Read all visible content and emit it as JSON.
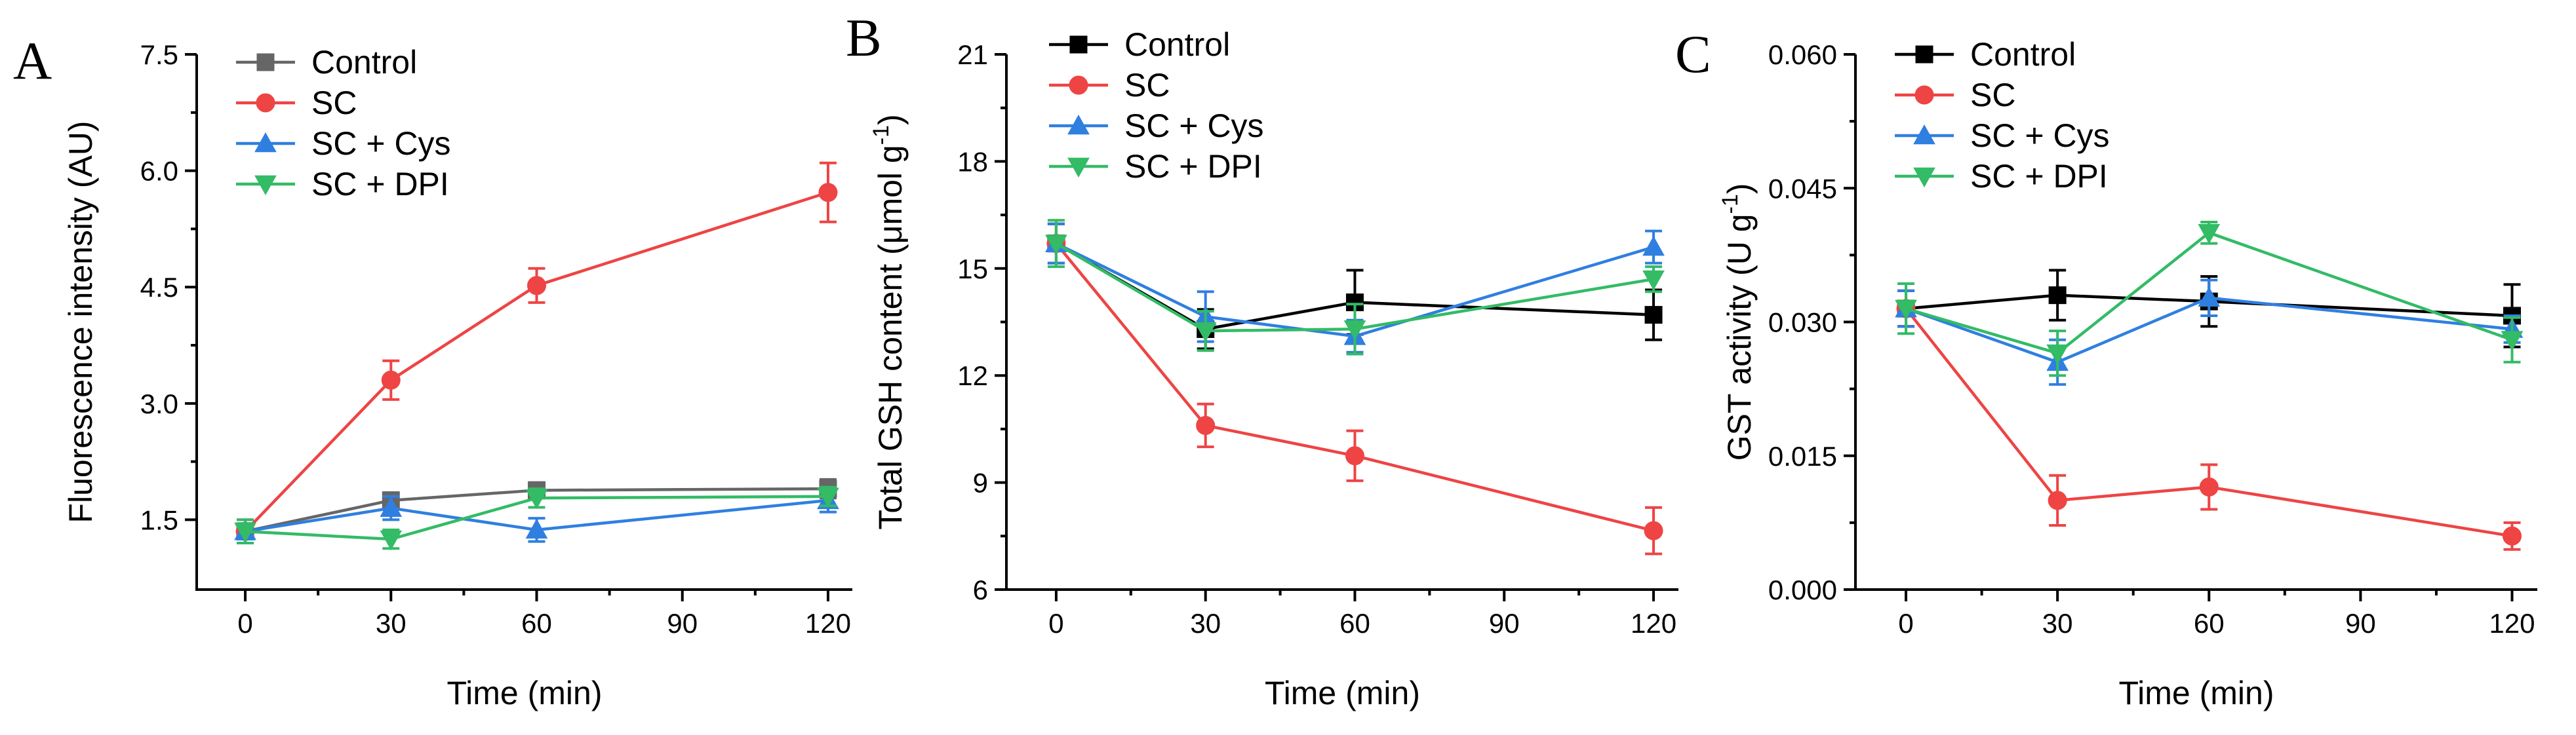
{
  "chart_data": [
    {
      "type": "line",
      "panel_label": "A",
      "xlabel": "Time (min)",
      "ylabel": "Fluorescence intensity (AU)",
      "x": [
        0,
        30,
        60,
        120
      ],
      "xlim": [
        -10,
        125
      ],
      "xticks": [
        0,
        30,
        60,
        90,
        120
      ],
      "ylim": [
        0.6,
        7.5
      ],
      "yticks": [
        "1.5",
        "3.0",
        "4.5",
        "6.0",
        "7.5"
      ],
      "legend_position": "top-left",
      "series": [
        {
          "name": "Control",
          "color": "#666666",
          "marker": "square",
          "values": [
            1.35,
            1.75,
            1.88,
            1.9
          ],
          "errors": [
            0.1,
            0.1,
            0.1,
            0.12
          ]
        },
        {
          "name": "SC",
          "color": "#ee4444",
          "marker": "circle",
          "values": [
            1.35,
            3.3,
            4.52,
            5.72
          ],
          "errors": [
            0.15,
            0.25,
            0.22,
            0.38
          ]
        },
        {
          "name": "SC + Cys",
          "color": "#2f7fe0",
          "marker": "triangle-up",
          "values": [
            1.35,
            1.65,
            1.37,
            1.75
          ],
          "errors": [
            0.1,
            0.15,
            0.15,
            0.15
          ]
        },
        {
          "name": "SC + DPI",
          "color": "#33bb66",
          "marker": "triangle-down",
          "values": [
            1.35,
            1.25,
            1.78,
            1.8
          ],
          "errors": [
            0.15,
            0.12,
            0.12,
            0.12
          ]
        }
      ]
    },
    {
      "type": "line",
      "panel_label": "B",
      "xlabel": "Time (min)",
      "ylabel": "Total GSH content (μmol g",
      "ylabel_superscript": "-1",
      "ylabel_suffix": ")",
      "x": [
        0,
        30,
        60,
        120
      ],
      "xlim": [
        -10,
        125
      ],
      "xticks": [
        0,
        30,
        60,
        90,
        120
      ],
      "ylim": [
        6,
        21
      ],
      "yticks": [
        "6",
        "9",
        "12",
        "15",
        "18",
        "21"
      ],
      "legend_position": "top-left",
      "series": [
        {
          "name": "Control",
          "color": "#000000",
          "marker": "square",
          "values": [
            15.7,
            13.3,
            14.05,
            13.7
          ],
          "errors": [
            0.55,
            0.55,
            0.9,
            0.7
          ]
        },
        {
          "name": "SC",
          "color": "#ee4444",
          "marker": "circle",
          "values": [
            15.7,
            10.6,
            9.75,
            7.65
          ],
          "errors": [
            0.55,
            0.6,
            0.7,
            0.65
          ]
        },
        {
          "name": "SC + Cys",
          "color": "#2f7fe0",
          "marker": "triangle-up",
          "values": [
            15.7,
            13.65,
            13.1,
            15.6
          ],
          "errors": [
            0.55,
            0.7,
            0.45,
            0.45
          ]
        },
        {
          "name": "SC + DPI",
          "color": "#33bb66",
          "marker": "triangle-down",
          "values": [
            15.7,
            13.25,
            13.3,
            14.7
          ],
          "errors": [
            0.65,
            0.55,
            0.7,
            0.35
          ]
        }
      ]
    },
    {
      "type": "line",
      "panel_label": "C",
      "xlabel": "Time (min)",
      "ylabel": "GST activity (U g",
      "ylabel_superscript": "-1",
      "ylabel_suffix": ")",
      "x": [
        0,
        30,
        60,
        120
      ],
      "xlim": [
        -10,
        125
      ],
      "xticks": [
        0,
        30,
        60,
        90,
        120
      ],
      "ylim": [
        0.0,
        0.06
      ],
      "yticks": [
        "0.000",
        "0.015",
        "0.030",
        "0.045",
        "0.060"
      ],
      "legend_position": "top-left",
      "series": [
        {
          "name": "Control",
          "color": "#000000",
          "marker": "square",
          "values": [
            0.0315,
            0.033,
            0.0323,
            0.0307
          ],
          "errors": [
            0.002,
            0.0028,
            0.0028,
            0.0035
          ]
        },
        {
          "name": "SC",
          "color": "#ee4444",
          "marker": "circle",
          "values": [
            0.0315,
            0.01,
            0.0115,
            0.006
          ],
          "errors": [
            0.002,
            0.0028,
            0.0025,
            0.0015
          ]
        },
        {
          "name": "SC + Cys",
          "color": "#2f7fe0",
          "marker": "triangle-up",
          "values": [
            0.0315,
            0.0255,
            0.0327,
            0.0292
          ],
          "errors": [
            0.002,
            0.0025,
            0.002,
            0.0015
          ]
        },
        {
          "name": "SC + DPI",
          "color": "#33bb66",
          "marker": "triangle-down",
          "values": [
            0.0315,
            0.0265,
            0.04,
            0.028
          ],
          "errors": [
            0.0028,
            0.0025,
            0.0012,
            0.0025
          ]
        }
      ]
    }
  ]
}
